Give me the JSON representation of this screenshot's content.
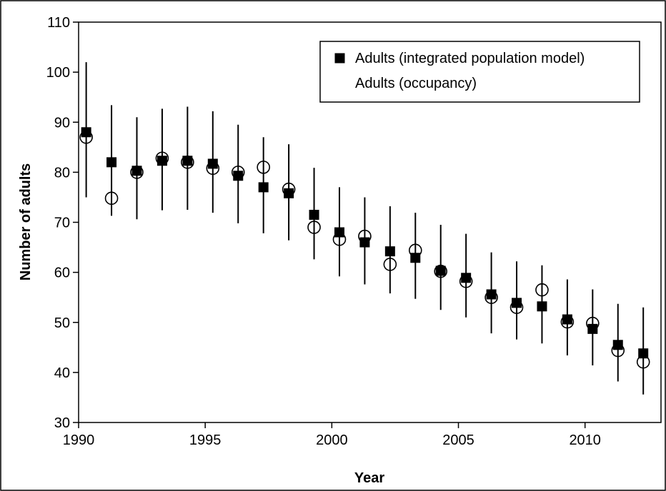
{
  "chart_data": {
    "type": "scatter",
    "title": "",
    "xlabel": "Year",
    "ylabel": "Number of adults",
    "xlim": [
      1990,
      2013
    ],
    "ylim": [
      30,
      110
    ],
    "xticks": [
      "1990",
      "1995",
      "2000",
      "2005",
      "2010"
    ],
    "xtick_values": [
      1990,
      1995,
      2000,
      2005,
      2010
    ],
    "yticks": [
      "30",
      "40",
      "50",
      "60",
      "70",
      "80",
      "90",
      "100",
      "110"
    ],
    "ytick_values": [
      30,
      40,
      50,
      60,
      70,
      80,
      90,
      100,
      110
    ],
    "grid": false,
    "legend_position": "top-right",
    "legend": [
      "Adults (integrated population model)",
      "Adults (occupancy)"
    ],
    "series": [
      {
        "name": "Adults (integrated population model)",
        "marker": "filled-square",
        "x": [
          1990.3,
          1991.3,
          1992.3,
          1993.3,
          1994.3,
          1995.3,
          1996.3,
          1997.3,
          1998.3,
          1999.3,
          2000.3,
          2001.3,
          2002.3,
          2003.3,
          2004.3,
          2005.3,
          2006.3,
          2007.3,
          2008.3,
          2009.3,
          2010.3,
          2011.3,
          2012.3
        ],
        "y": [
          88,
          82,
          80.3,
          82.3,
          82.3,
          81.7,
          79.3,
          77,
          75.8,
          71.5,
          68,
          66,
          64.2,
          62.9,
          60.3,
          58.9,
          55.6,
          53.9,
          53.2,
          50.6,
          48.7,
          45.5,
          43.8
        ],
        "lower": [
          75,
          71.3,
          70.6,
          72.4,
          72.5,
          71.9,
          69.8,
          67.8,
          66.4,
          62.6,
          59.2,
          57.6,
          55.8,
          54.7,
          52.5,
          51,
          47.8,
          46.6,
          45.8,
          43.4,
          41.4,
          38.2,
          35.6
        ],
        "upper": [
          102,
          93.4,
          91,
          92.7,
          93.1,
          92.2,
          89.5,
          87,
          85.6,
          80.9,
          77,
          75,
          73.2,
          71.9,
          69.5,
          67.7,
          64,
          62.2,
          61.4,
          58.6,
          56.6,
          53.7,
          53
        ]
      },
      {
        "name": "Adults (occupancy)",
        "marker": "open-circle",
        "x": [
          1990.3,
          1991.3,
          1992.3,
          1993.3,
          1994.3,
          1995.3,
          1996.3,
          1997.3,
          1998.3,
          1999.3,
          2000.3,
          2001.3,
          2002.3,
          2003.3,
          2004.3,
          2005.3,
          2006.3,
          2007.3,
          2008.3,
          2009.3,
          2010.3,
          2011.3,
          2012.3
        ],
        "y": [
          87,
          74.8,
          80,
          82.8,
          82,
          80.8,
          80,
          81,
          76.6,
          69,
          66.6,
          67.2,
          61.6,
          64.4,
          60.2,
          58.2,
          55,
          53,
          56.5,
          50.1,
          49.8,
          44.4,
          42.1
        ]
      }
    ]
  }
}
